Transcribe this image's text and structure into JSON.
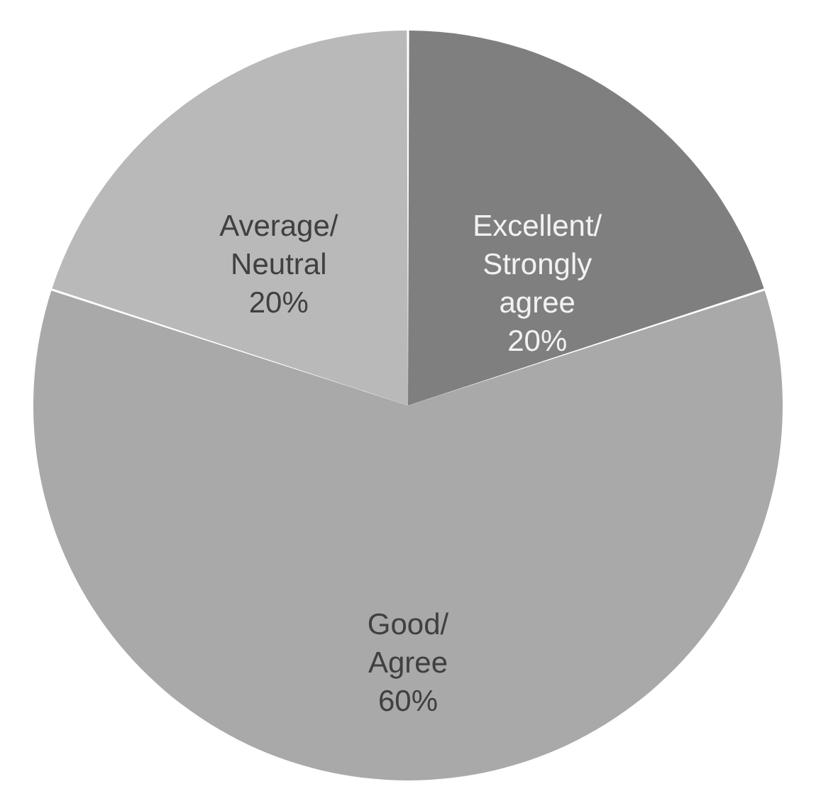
{
  "chart_data": {
    "type": "pie",
    "categories": [
      "Excellent/ Strongly agree",
      "Good/ Agree",
      "Average/ Neutral"
    ],
    "values": [
      20,
      60,
      20
    ],
    "value_labels": [
      "20%",
      "60%",
      "20%"
    ],
    "colors": [
      "#7f7f7f",
      "#a9a9a9",
      "#b9b9b9"
    ]
  }
}
